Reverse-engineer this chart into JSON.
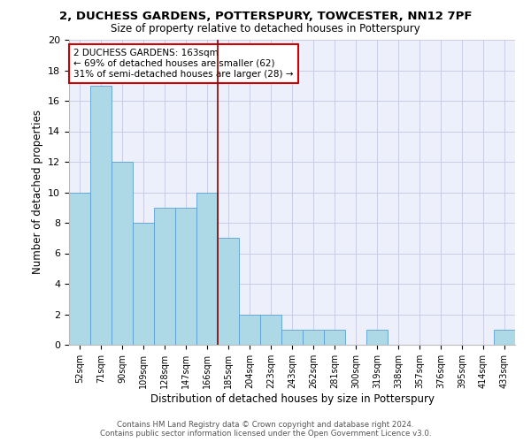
{
  "title1": "2, DUCHESS GARDENS, POTTERSPURY, TOWCESTER, NN12 7PF",
  "title2": "Size of property relative to detached houses in Potterspury",
  "xlabel": "Distribution of detached houses by size in Potterspury",
  "ylabel": "Number of detached properties",
  "categories": [
    "52sqm",
    "71sqm",
    "90sqm",
    "109sqm",
    "128sqm",
    "147sqm",
    "166sqm",
    "185sqm",
    "204sqm",
    "223sqm",
    "243sqm",
    "262sqm",
    "281sqm",
    "300sqm",
    "319sqm",
    "338sqm",
    "357sqm",
    "376sqm",
    "395sqm",
    "414sqm",
    "433sqm"
  ],
  "values": [
    10,
    17,
    12,
    8,
    9,
    9,
    10,
    7,
    2,
    2,
    1,
    1,
    1,
    0,
    1,
    0,
    0,
    0,
    0,
    0,
    1
  ],
  "bar_color": "#add8e6",
  "bar_edge_color": "#5a9fd4",
  "vline_color": "#8b0000",
  "annotation_text": "2 DUCHESS GARDENS: 163sqm\n← 69% of detached houses are smaller (62)\n31% of semi-detached houses are larger (28) →",
  "annotation_box_color": "#ffffff",
  "annotation_box_edge": "#cc0000",
  "ylim": [
    0,
    20
  ],
  "yticks": [
    0,
    2,
    4,
    6,
    8,
    10,
    12,
    14,
    16,
    18,
    20
  ],
  "footer1": "Contains HM Land Registry data © Crown copyright and database right 2024.",
  "footer2": "Contains public sector information licensed under the Open Government Licence v3.0.",
  "bg_color": "#edf0fb",
  "grid_color": "#c8cce8"
}
